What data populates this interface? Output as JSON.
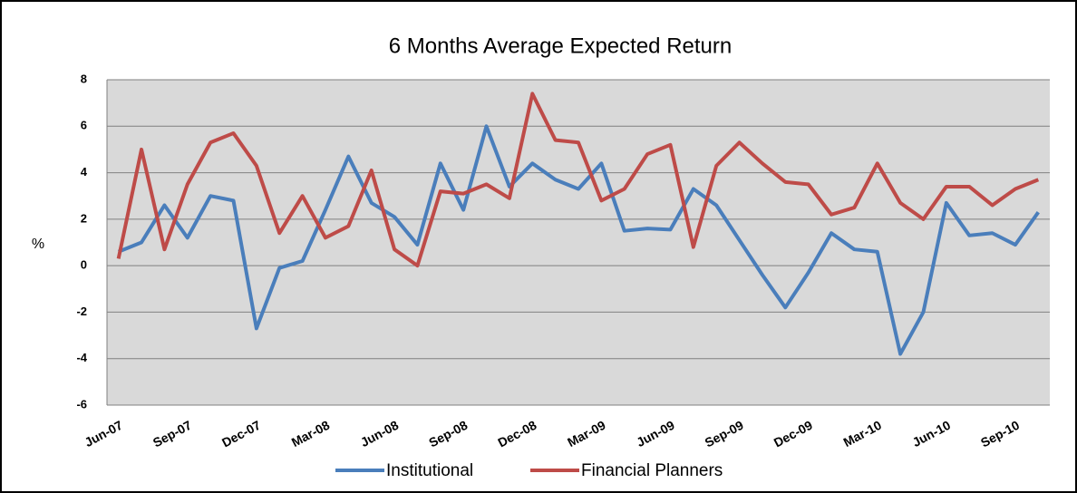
{
  "chart_data": {
    "type": "line",
    "title": "6 Months Average Expected Return",
    "y_label": "%",
    "categories": [
      "Jun-07",
      null,
      null,
      "Sep-07",
      null,
      null,
      "Dec-07",
      null,
      null,
      "Mar-08",
      null,
      null,
      "Jun-08",
      null,
      null,
      "Sep-08",
      null,
      null,
      "Dec-08",
      null,
      null,
      "Mar-09",
      null,
      null,
      "Jun-09",
      null,
      null,
      "Sep-09",
      null,
      null,
      "Dec-09",
      null,
      null,
      "Mar-10",
      null,
      null,
      "Jun-10",
      null,
      null,
      "Sep-10",
      null
    ],
    "series": [
      {
        "name": "Institutional",
        "color": "#4a7ebb",
        "values": [
          0.6,
          1.0,
          2.6,
          1.2,
          3.0,
          2.8,
          -2.7,
          -0.1,
          0.2,
          2.4,
          4.7,
          2.7,
          2.1,
          0.9,
          4.4,
          2.4,
          6.0,
          3.4,
          4.4,
          3.7,
          3.3,
          4.4,
          1.5,
          1.6,
          1.55,
          3.3,
          2.6,
          1.1,
          -0.4,
          -1.8,
          -0.3,
          1.4,
          0.7,
          0.6,
          -3.8,
          -2.0,
          2.7,
          1.3,
          1.4,
          0.9,
          2.3
        ]
      },
      {
        "name": "Financial Planners",
        "color": "#be4b48",
        "values": [
          0.3,
          5.0,
          0.7,
          3.5,
          5.3,
          5.7,
          4.3,
          1.4,
          3.0,
          1.2,
          1.7,
          4.1,
          0.7,
          0.0,
          3.2,
          3.1,
          3.5,
          2.9,
          7.4,
          5.4,
          5.3,
          2.8,
          3.3,
          4.8,
          5.2,
          0.8,
          4.3,
          5.3,
          4.4,
          3.6,
          3.5,
          2.2,
          2.5,
          4.4,
          2.7,
          2.0,
          3.4,
          3.4,
          2.6,
          3.3,
          3.7
        ]
      }
    ],
    "ylim": [
      -6,
      8
    ],
    "yticks": [
      -6,
      -4,
      -2,
      0,
      2,
      4,
      6,
      8
    ],
    "grid": true,
    "legend": "bottom"
  }
}
